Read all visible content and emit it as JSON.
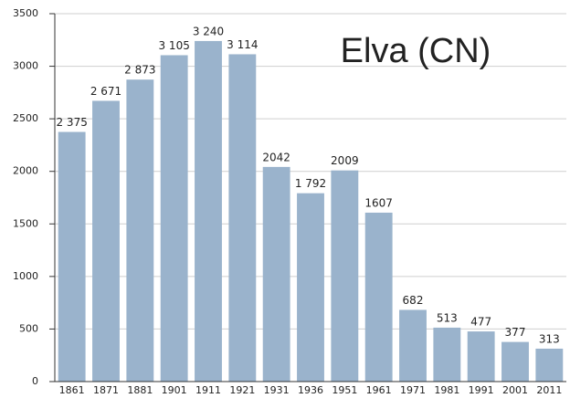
{
  "chart_data": {
    "type": "bar",
    "title": "Elva (CN)",
    "categories": [
      "1861",
      "1871",
      "1881",
      "1901",
      "1911",
      "1921",
      "1931",
      "1936",
      "1951",
      "1961",
      "1971",
      "1981",
      "1991",
      "2001",
      "2011"
    ],
    "values": [
      2375,
      2671,
      2873,
      3105,
      3240,
      3114,
      2042,
      1792,
      2009,
      1607,
      682,
      513,
      477,
      377,
      313
    ],
    "value_labels": [
      "2 375",
      "2 671",
      "2 873",
      "3 105",
      "3 240",
      "3 114",
      "2042",
      "1 792",
      "2009",
      "1607",
      "682",
      "513",
      "477",
      "377",
      "313"
    ],
    "color": "#9ab3cc",
    "ylim": [
      0,
      3500
    ],
    "yticks": [
      0,
      500,
      1000,
      1500,
      2000,
      2500,
      3000,
      3500
    ],
    "grid": true
  }
}
